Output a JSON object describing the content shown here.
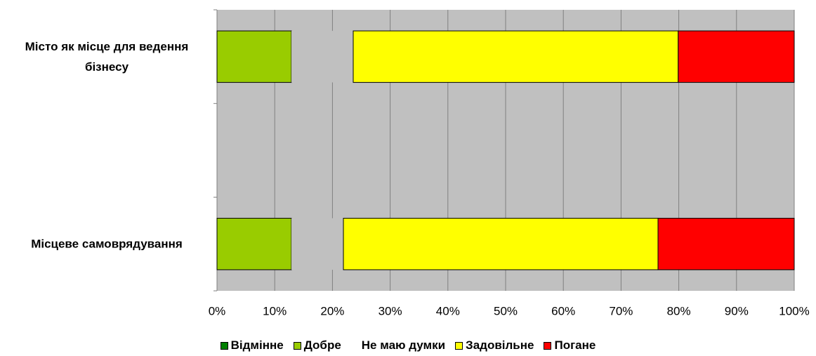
{
  "chart_data": {
    "type": "stacked-bar-horizontal",
    "categories": [
      "Місто як місце для ведення бізнесу",
      null,
      "Місцеве самоврядування"
    ],
    "series": [
      {
        "name": "Відмінне",
        "color": "#008000",
        "values": [
          0,
          null,
          0
        ]
      },
      {
        "name": "Добре",
        "color": "#99cc00",
        "values": [
          12.9,
          null,
          12.9
        ]
      },
      {
        "name": "Не маю думки",
        "color": "#c0c0c0",
        "values": [
          10.7,
          null,
          9.0
        ]
      },
      {
        "name": "Задовільне",
        "color": "#ffff00",
        "values": [
          56.3,
          null,
          54.5
        ]
      },
      {
        "name": "Погане",
        "color": "#ff0000",
        "values": [
          20.1,
          null,
          23.6
        ]
      }
    ],
    "xlim": [
      0,
      100
    ],
    "xticks": [
      {
        "value": 0,
        "label": "0%"
      },
      {
        "value": 10,
        "label": "10%"
      },
      {
        "value": 20,
        "label": "20%"
      },
      {
        "value": 30,
        "label": "30%"
      },
      {
        "value": 40,
        "label": "40%"
      },
      {
        "value": 50,
        "label": "50%"
      },
      {
        "value": 60,
        "label": "60%"
      },
      {
        "value": 70,
        "label": "70%"
      },
      {
        "value": 80,
        "label": "80%"
      },
      {
        "value": 90,
        "label": "90%"
      },
      {
        "value": 100,
        "label": "100%"
      }
    ],
    "grid": true,
    "legend": "bottom"
  }
}
